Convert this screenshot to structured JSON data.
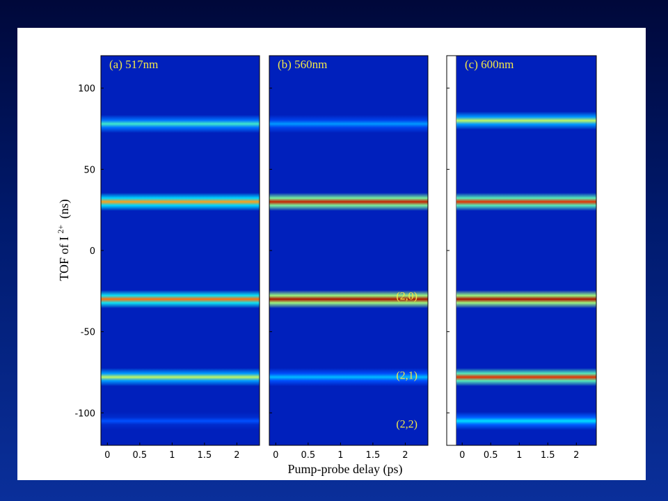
{
  "slide": {
    "background_color": "#001a6e",
    "panel_color": "#ffffff"
  },
  "figure": {
    "xlabel": "Pump-probe delay (ps)",
    "ylabel_main": "TOF of I",
    "ylabel_sup": "2+",
    "ylabel_unit": "(ns)",
    "ytick_labels": [
      "100",
      "50",
      "0",
      "-50",
      "-100"
    ],
    "xtick_labels": [
      "0",
      "0.5",
      "1",
      "1.5",
      "2"
    ]
  },
  "chart_data": [
    {
      "type": "heatmap",
      "title": "(a) 517nm",
      "xlabel": "Pump-probe delay (ps)",
      "ylabel": "TOF of I 2+ (ns)",
      "xlim": [
        -0.1,
        2.35
      ],
      "ylim": [
        -120,
        120
      ],
      "xticks": [
        0,
        0.5,
        1,
        1.5,
        2
      ],
      "yticks": [
        100,
        50,
        0,
        -50,
        -100
      ],
      "colormap": [
        "#00008f",
        "#0050ff",
        "#00e0ff",
        "#ffff30",
        "#ff4000",
        "#8f0000"
      ],
      "bands": [
        {
          "tof": 78,
          "intensity": 0.45
        },
        {
          "tof": 30,
          "intensity": 0.7
        },
        {
          "tof": -30,
          "intensity": 0.75
        },
        {
          "tof": -78,
          "intensity": 0.55
        },
        {
          "tof": -105,
          "intensity": 0.2
        }
      ],
      "band_labels": []
    },
    {
      "type": "heatmap",
      "title": "(b) 560nm",
      "xlabel": "Pump-probe delay (ps)",
      "ylabel": "TOF of I 2+ (ns)",
      "xlim": [
        -0.1,
        2.35
      ],
      "ylim": [
        -120,
        120
      ],
      "xticks": [
        0,
        0.5,
        1,
        1.5,
        2
      ],
      "yticks": [
        100,
        50,
        0,
        -50,
        -100
      ],
      "colormap": [
        "#00008f",
        "#0050ff",
        "#00e0ff",
        "#ffff30",
        "#ff4000",
        "#8f0000"
      ],
      "bands": [
        {
          "tof": 78,
          "intensity": 0.3
        },
        {
          "tof": 30,
          "intensity": 0.9
        },
        {
          "tof": -30,
          "intensity": 0.95
        },
        {
          "tof": -78,
          "intensity": 0.35
        }
      ],
      "band_labels": [
        {
          "text": "(2,0)",
          "tof": -28
        },
        {
          "text": "(2,1)",
          "tof": -77
        },
        {
          "text": "(2,2)",
          "tof": -107
        }
      ]
    },
    {
      "type": "heatmap",
      "title": "(c) 600nm",
      "xlabel": "Pump-probe delay (ps)",
      "ylabel": "TOF of I 2+ (ns)",
      "xlim": [
        -0.1,
        2.35
      ],
      "ylim": [
        -120,
        120
      ],
      "xticks": [
        0,
        0.5,
        1,
        1.5,
        2
      ],
      "yticks": [
        100,
        50,
        0,
        -50,
        -100
      ],
      "colormap": [
        "#00008f",
        "#0050ff",
        "#00e0ff",
        "#ffff30",
        "#ff4000",
        "#8f0000"
      ],
      "bands": [
        {
          "tof": 80,
          "intensity": 0.55
        },
        {
          "tof": 30,
          "intensity": 0.85
        },
        {
          "tof": -30,
          "intensity": 0.95
        },
        {
          "tof": -78,
          "intensity": 0.85
        },
        {
          "tof": -105,
          "intensity": 0.4
        }
      ],
      "band_labels": []
    }
  ]
}
